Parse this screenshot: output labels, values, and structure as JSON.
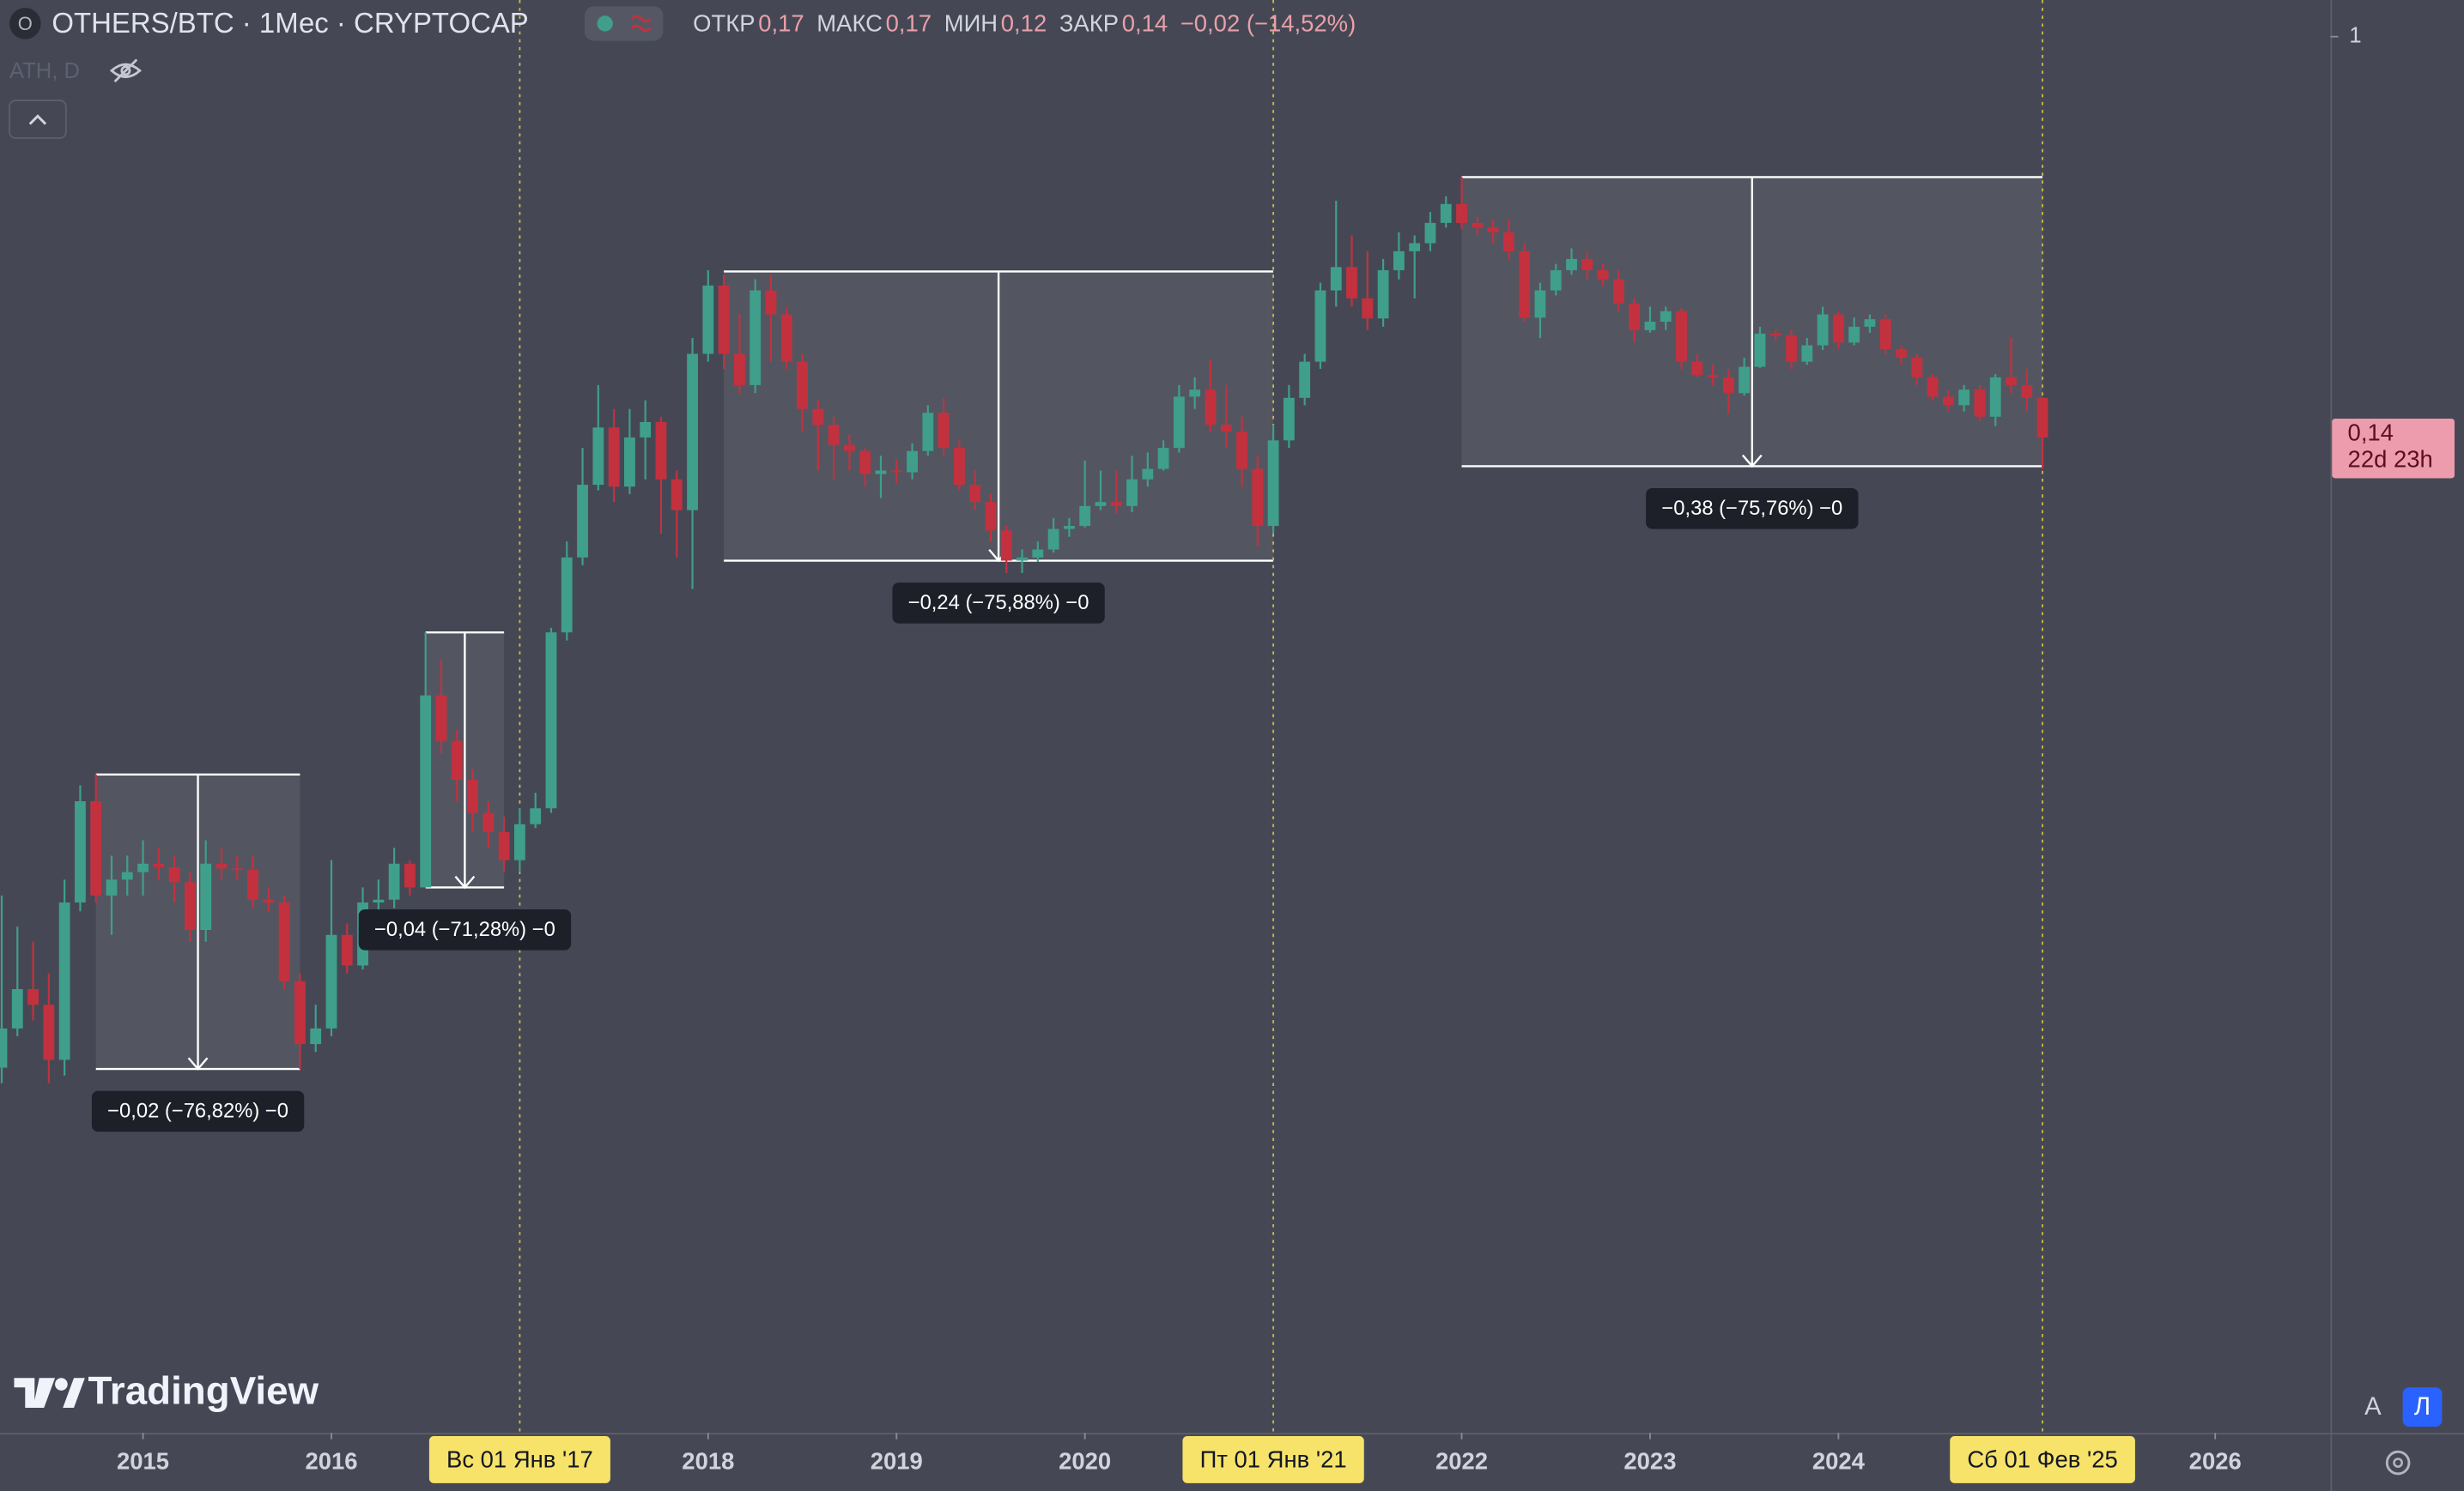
{
  "header": {
    "symbol_icon": "O",
    "title": "OTHERS/BTC · 1Мес · CRYPTOCAP",
    "ohlc": [
      {
        "label": "ОТКР",
        "value": "0,17"
      },
      {
        "label": "МАКС",
        "value": "0,17"
      },
      {
        "label": "МИН",
        "value": "0,12"
      },
      {
        "label": "ЗАКР",
        "value": "0,14"
      }
    ],
    "change": "−0,02 (−14,52%)",
    "indicator": "ATH, D"
  },
  "chart_data": {
    "type": "candlestick",
    "y_scale": "log",
    "grid": false,
    "up_color": "#3f9f8b",
    "down_color": "#c3313f",
    "ylim": [
      0.00106,
      1.197
    ],
    "yticks": [
      1
    ],
    "x": [
      "2014-04",
      "2014-05",
      "2014-06",
      "2014-07",
      "2014-08",
      "2014-09",
      "2014-10",
      "2014-11",
      "2014-12",
      "2015-01",
      "2015-02",
      "2015-03",
      "2015-04",
      "2015-05",
      "2015-06",
      "2015-07",
      "2015-08",
      "2015-09",
      "2015-10",
      "2015-11",
      "2015-12",
      "2016-01",
      "2016-02",
      "2016-03",
      "2016-04",
      "2016-05",
      "2016-06",
      "2016-07",
      "2016-08",
      "2016-09",
      "2016-10",
      "2016-11",
      "2016-12",
      "2017-01",
      "2017-02",
      "2017-03",
      "2017-04",
      "2017-05",
      "2017-06",
      "2017-07",
      "2017-08",
      "2017-09",
      "2017-10",
      "2017-11",
      "2017-12",
      "2018-01",
      "2018-02",
      "2018-03",
      "2018-04",
      "2018-05",
      "2018-06",
      "2018-07",
      "2018-08",
      "2018-09",
      "2018-10",
      "2018-11",
      "2018-12",
      "2019-01",
      "2019-02",
      "2019-03",
      "2019-04",
      "2019-05",
      "2019-06",
      "2019-07",
      "2019-08",
      "2019-09",
      "2019-10",
      "2019-11",
      "2019-12",
      "2020-01",
      "2020-02",
      "2020-03",
      "2020-04",
      "2020-05",
      "2020-06",
      "2020-07",
      "2020-08",
      "2020-09",
      "2020-10",
      "2020-11",
      "2020-12",
      "2021-01",
      "2021-02",
      "2021-03",
      "2021-04",
      "2021-05",
      "2021-06",
      "2021-07",
      "2021-08",
      "2021-09",
      "2021-10",
      "2021-11",
      "2021-12",
      "2022-01",
      "2022-02",
      "2022-03",
      "2022-04",
      "2022-05",
      "2022-06",
      "2022-07",
      "2022-08",
      "2022-09",
      "2022-10",
      "2022-11",
      "2022-12",
      "2023-01",
      "2023-02",
      "2023-03",
      "2023-04",
      "2023-05",
      "2023-06",
      "2023-07",
      "2023-08",
      "2023-09",
      "2023-10",
      "2023-11",
      "2023-12",
      "2024-01",
      "2024-02",
      "2024-03",
      "2024-04",
      "2024-05",
      "2024-06",
      "2024-07",
      "2024-08",
      "2024-09",
      "2024-10",
      "2024-11",
      "2024-12",
      "2025-01",
      "2025-02"
    ],
    "open": [
      0.00636,
      0.00771,
      0.00935,
      0.00866,
      0.00661,
      0.0143,
      0.0235,
      0.0148,
      0.016,
      0.0166,
      0.0173,
      0.017,
      0.0158,
      0.0125,
      0.0173,
      0.0169,
      0.0168,
      0.0145,
      0.0143,
      0.00972,
      0.00714,
      0.00771,
      0.0122,
      0.0105,
      0.0143,
      0.0145,
      0.0173,
      0.0154,
      0.0395,
      0.0316,
      0.0261,
      0.0222,
      0.0202,
      0.0176,
      0.021,
      0.0227,
      0.0538,
      0.0777,
      0.111,
      0.147,
      0.11,
      0.14,
      0.151,
      0.114,
      0.098,
      0.211,
      0.295,
      0.211,
      0.181,
      0.288,
      0.256,
      0.203,
      0.161,
      0.149,
      0.135,
      0.131,
      0.117,
      0.119,
      0.118,
      0.131,
      0.158,
      0.133,
      0.111,
      0.102,
      0.0887,
      0.0765,
      0.0777,
      0.0808,
      0.0894,
      0.0907,
      0.1,
      0.102,
      0.1,
      0.114,
      0.12,
      0.133,
      0.171,
      0.177,
      0.149,
      0.144,
      0.12,
      0.0907,
      0.138,
      0.17,
      0.203,
      0.288,
      0.323,
      0.277,
      0.251,
      0.318,
      0.349,
      0.363,
      0.401,
      0.44,
      0.401,
      0.392,
      0.383,
      0.349,
      0.252,
      0.288,
      0.318,
      0.336,
      0.318,
      0.304,
      0.27,
      0.237,
      0.247,
      0.26,
      0.203,
      0.19,
      0.188,
      0.174,
      0.198,
      0.233,
      0.231,
      0.203,
      0.22,
      0.256,
      0.223,
      0.241,
      0.25,
      0.216,
      0.207,
      0.188,
      0.171,
      0.164,
      0.177,
      0.155,
      0.188,
      0.181,
      0.17
    ],
    "high": [
      0.0148,
      0.0127,
      0.0118,
      0.0101,
      0.016,
      0.0254,
      0.0268,
      0.018,
      0.018,
      0.0194,
      0.0187,
      0.018,
      0.0166,
      0.0194,
      0.0187,
      0.018,
      0.018,
      0.0154,
      0.0148,
      0.0101,
      0.00866,
      0.0176,
      0.0129,
      0.0154,
      0.016,
      0.0187,
      0.0176,
      0.0538,
      0.0471,
      0.0333,
      0.0275,
      0.0235,
      0.0218,
      0.0227,
      0.0245,
      0.055,
      0.084,
      0.133,
      0.181,
      0.161,
      0.161,
      0.168,
      0.155,
      0.119,
      0.228,
      0.318,
      0.311,
      0.256,
      0.304,
      0.311,
      0.266,
      0.211,
      0.168,
      0.155,
      0.142,
      0.133,
      0.128,
      0.126,
      0.136,
      0.164,
      0.17,
      0.138,
      0.119,
      0.106,
      0.0907,
      0.0808,
      0.084,
      0.0943,
      0.0943,
      0.125,
      0.119,
      0.119,
      0.128,
      0.13,
      0.138,
      0.181,
      0.188,
      0.205,
      0.181,
      0.155,
      0.128,
      0.149,
      0.181,
      0.211,
      0.299,
      0.447,
      0.377,
      0.349,
      0.336,
      0.383,
      0.377,
      0.423,
      0.457,
      0.502,
      0.413,
      0.407,
      0.407,
      0.363,
      0.299,
      0.328,
      0.354,
      0.349,
      0.328,
      0.318,
      0.277,
      0.266,
      0.266,
      0.264,
      0.211,
      0.2,
      0.196,
      0.207,
      0.241,
      0.237,
      0.237,
      0.228,
      0.266,
      0.26,
      0.252,
      0.256,
      0.256,
      0.22,
      0.211,
      0.191,
      0.177,
      0.181,
      0.181,
      0.191,
      0.228,
      0.196,
      0.17
    ],
    "low": [
      0.00589,
      0.00742,
      0.00802,
      0.00589,
      0.00612,
      0.0137,
      0.0143,
      0.0122,
      0.0148,
      0.0148,
      0.016,
      0.0143,
      0.0118,
      0.0118,
      0.016,
      0.016,
      0.0139,
      0.0137,
      0.00935,
      0.00632,
      0.00687,
      0.00742,
      0.0101,
      0.0103,
      0.0137,
      0.0139,
      0.0148,
      0.0154,
      0.0297,
      0.0235,
      0.0202,
      0.0187,
      0.0166,
      0.0166,
      0.0206,
      0.0222,
      0.0517,
      0.0748,
      0.108,
      0.102,
      0.106,
      0.114,
      0.0873,
      0.0777,
      0.0666,
      0.203,
      0.196,
      0.174,
      0.174,
      0.203,
      0.196,
      0.144,
      0.119,
      0.114,
      0.119,
      0.11,
      0.104,
      0.112,
      0.114,
      0.128,
      0.128,
      0.108,
      0.098,
      0.084,
      0.072,
      0.072,
      0.076,
      0.0796,
      0.086,
      0.09,
      0.098,
      0.0965,
      0.097,
      0.11,
      0.119,
      0.13,
      0.161,
      0.144,
      0.133,
      0.11,
      0.082,
      0.0873,
      0.133,
      0.164,
      0.196,
      0.266,
      0.266,
      0.237,
      0.241,
      0.304,
      0.277,
      0.349,
      0.392,
      0.389,
      0.377,
      0.363,
      0.336,
      0.247,
      0.228,
      0.281,
      0.311,
      0.304,
      0.294,
      0.26,
      0.223,
      0.234,
      0.237,
      0.196,
      0.188,
      0.181,
      0.157,
      0.172,
      0.197,
      0.226,
      0.196,
      0.2,
      0.215,
      0.216,
      0.22,
      0.234,
      0.211,
      0.2,
      0.181,
      0.168,
      0.159,
      0.159,
      0.152,
      0.148,
      0.174,
      0.159,
      0.12
    ],
    "close": [
      0.00771,
      0.00935,
      0.00866,
      0.00661,
      0.0143,
      0.0235,
      0.0148,
      0.016,
      0.0166,
      0.0173,
      0.017,
      0.0158,
      0.0125,
      0.0173,
      0.0169,
      0.0168,
      0.0145,
      0.0143,
      0.00972,
      0.00714,
      0.00771,
      0.0122,
      0.0105,
      0.0143,
      0.0145,
      0.0173,
      0.0154,
      0.0395,
      0.0316,
      0.0261,
      0.0222,
      0.0202,
      0.0176,
      0.021,
      0.0227,
      0.0538,
      0.0777,
      0.111,
      0.147,
      0.11,
      0.14,
      0.151,
      0.114,
      0.098,
      0.211,
      0.295,
      0.211,
      0.181,
      0.288,
      0.256,
      0.203,
      0.161,
      0.149,
      0.135,
      0.131,
      0.117,
      0.119,
      0.118,
      0.131,
      0.158,
      0.133,
      0.111,
      0.102,
      0.0887,
      0.0765,
      0.0777,
      0.0808,
      0.0894,
      0.0907,
      0.1,
      0.102,
      0.1,
      0.114,
      0.12,
      0.133,
      0.171,
      0.177,
      0.149,
      0.144,
      0.12,
      0.0907,
      0.138,
      0.17,
      0.203,
      0.288,
      0.323,
      0.277,
      0.251,
      0.318,
      0.349,
      0.363,
      0.401,
      0.44,
      0.401,
      0.392,
      0.383,
      0.349,
      0.252,
      0.288,
      0.318,
      0.336,
      0.318,
      0.304,
      0.27,
      0.237,
      0.247,
      0.26,
      0.203,
      0.19,
      0.188,
      0.174,
      0.198,
      0.233,
      0.231,
      0.203,
      0.22,
      0.256,
      0.223,
      0.241,
      0.25,
      0.216,
      0.207,
      0.188,
      0.171,
      0.164,
      0.177,
      0.155,
      0.188,
      0.181,
      0.17,
      0.14
    ],
    "xticks": [
      {
        "value": "2015-01",
        "label": "2015"
      },
      {
        "value": "2016-01",
        "label": "2016"
      },
      {
        "value": "2018-01",
        "label": "2018"
      },
      {
        "value": "2019-01",
        "label": "2019"
      },
      {
        "value": "2020-01",
        "label": "2020"
      },
      {
        "value": "2022-01",
        "label": "2022"
      },
      {
        "value": "2023-01",
        "label": "2023"
      },
      {
        "value": "2024-01",
        "label": "2024"
      },
      {
        "value": "2026-01",
        "label": "2026"
      }
    ],
    "cursor_dates": [
      {
        "value": "2017-01",
        "label": "Вс 01 Янв '17"
      },
      {
        "value": "2021-01",
        "label": "Пт 01 Янв '21"
      },
      {
        "value": "2025-02",
        "label": "Сб 01 Фев '25"
      }
    ],
    "measures": [
      {
        "x": [
          "2014-10",
          "2015-11"
        ],
        "top": 0.0268,
        "bottom": 0.00632,
        "label": "−0,02 (−76,82%) −0"
      },
      {
        "x": [
          "2016-07",
          "2016-12"
        ],
        "top": 0.0538,
        "bottom": 0.0154,
        "label": "−0,04 (−71,28%) −0"
      },
      {
        "x": [
          "2018-02",
          "2021-01"
        ],
        "top": 0.316,
        "bottom": 0.0765,
        "label": "−0,24 (−75,88%) −0"
      },
      {
        "x": [
          "2022-01",
          "2025-02"
        ],
        "top": 0.502,
        "bottom": 0.1216,
        "label": "−0,38 (−75,76%) −0"
      }
    ],
    "price_tag": {
      "value": 0.14,
      "label": "0,14",
      "countdown": "22d 23h",
      "color": "#ec9cad"
    }
  },
  "footer": {
    "logo": "TradingView",
    "auto_button": "A",
    "log_button": "Л"
  }
}
